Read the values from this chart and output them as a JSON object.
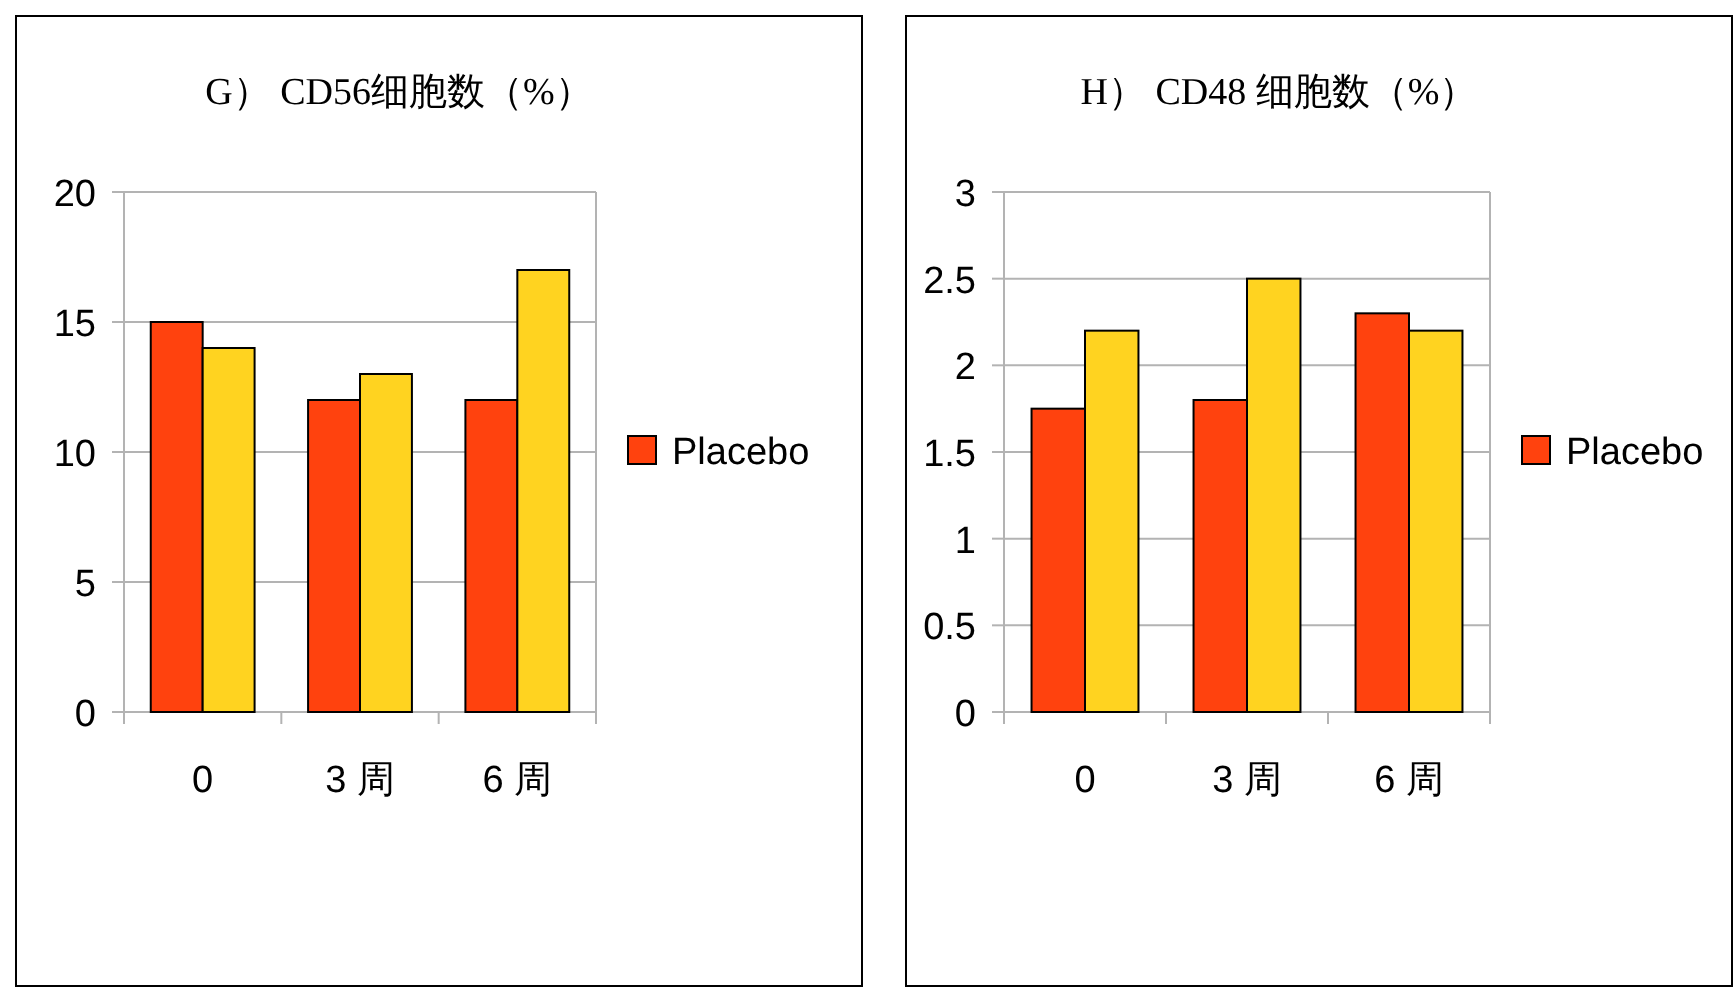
{
  "chart_data": [
    {
      "type": "bar",
      "title": "G） CD56细胞数（%）",
      "categories": [
        "0",
        "3 周",
        "6 周"
      ],
      "series": [
        {
          "name": "Placebo",
          "color": "#ff420e",
          "values": [
            15,
            12,
            12
          ]
        },
        {
          "color": "#ffd320",
          "values": [
            14,
            13,
            17
          ]
        }
      ],
      "ylim": [
        0,
        20
      ],
      "yticks": [
        0,
        5,
        10,
        15,
        20
      ],
      "grid": "y",
      "legend": "right"
    },
    {
      "type": "bar",
      "title": "H） CD48 细胞数（%）",
      "categories": [
        "0",
        "3 周",
        "6 周"
      ],
      "series": [
        {
          "name": "Placebo",
          "color": "#ff420e",
          "values": [
            1.75,
            1.8,
            2.3
          ]
        },
        {
          "color": "#ffd320",
          "values": [
            2.2,
            2.5,
            2.2
          ]
        }
      ],
      "ylim": [
        0,
        3
      ],
      "yticks": [
        0,
        0.5,
        1,
        1.5,
        2,
        2.5,
        3
      ],
      "grid": "y",
      "legend": "right"
    }
  ]
}
